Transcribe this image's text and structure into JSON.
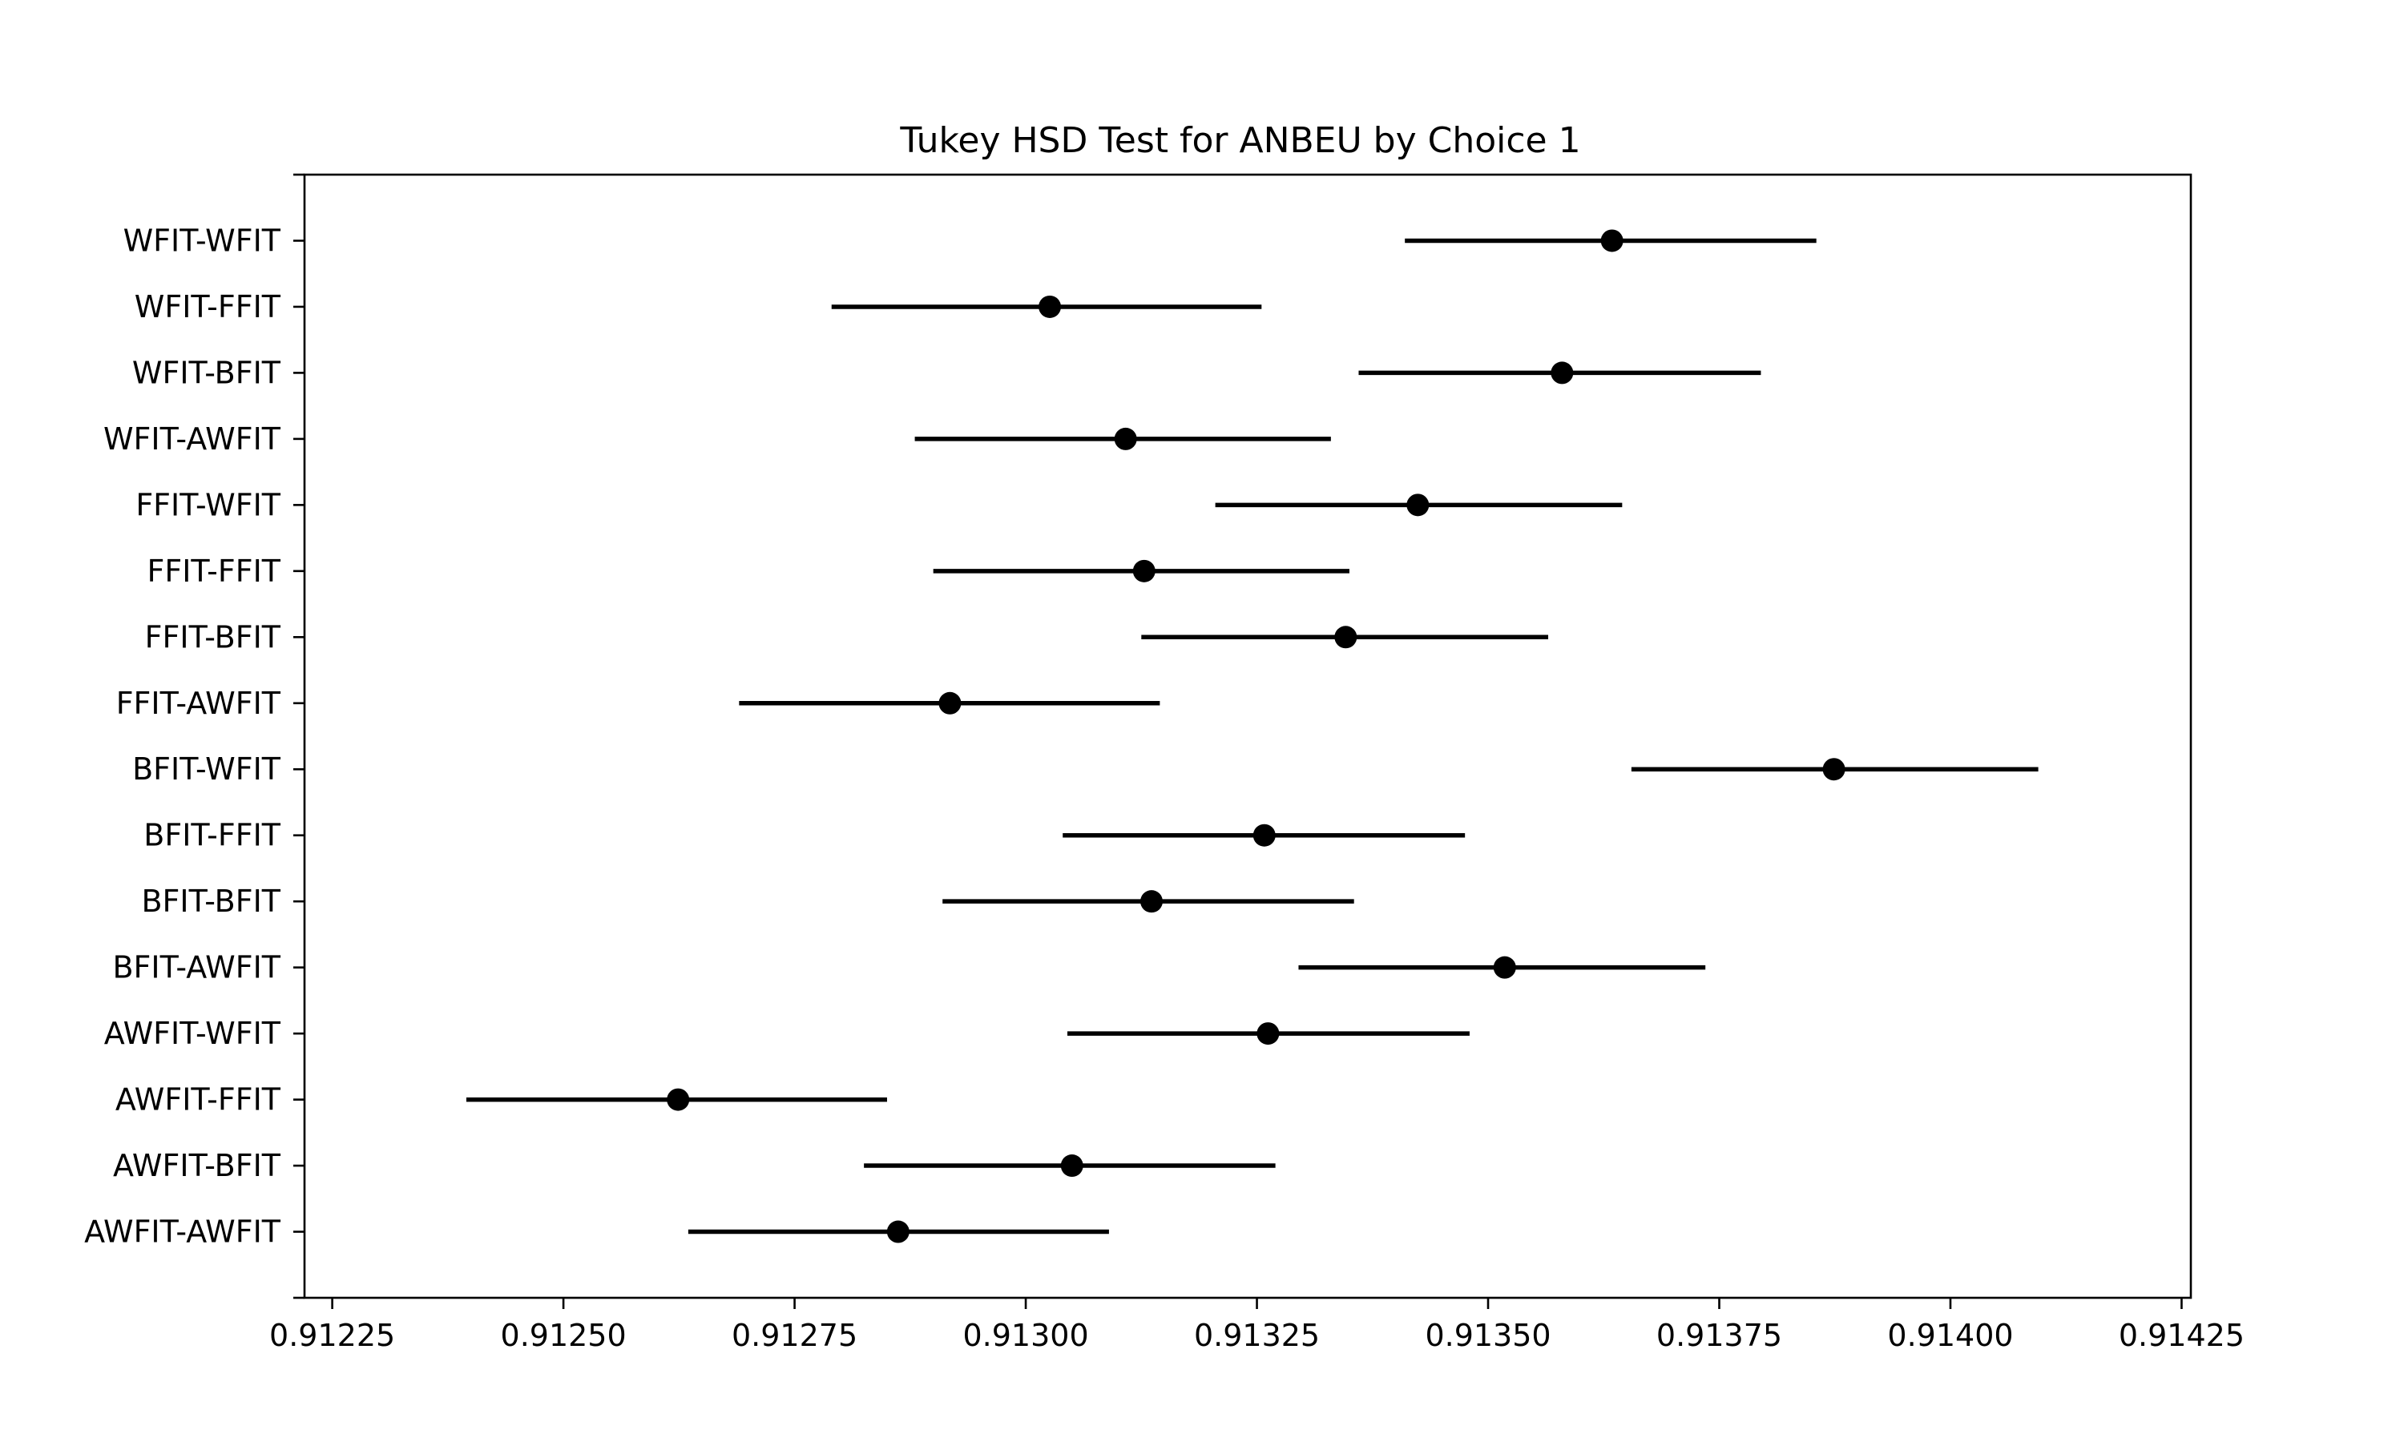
{
  "chart_data": {
    "type": "scatter",
    "subtype": "interval",
    "title": "Tukey HSD Test for ANBEU by Choice 1",
    "xlabel": "",
    "ylabel": "",
    "xlim": [
      0.91222,
      0.91426
    ],
    "xticks": [
      0.91225,
      0.9125,
      0.91275,
      0.913,
      0.91325,
      0.9135,
      0.91375,
      0.914,
      0.91425
    ],
    "xtick_labels": [
      "0.91225",
      "0.91250",
      "0.91275",
      "0.91300",
      "0.91325",
      "0.91350",
      "0.91375",
      "0.91400",
      "0.91425"
    ],
    "grid": false,
    "color": "#000000",
    "categories": [
      "WFIT-WFIT",
      "WFIT-FFIT",
      "WFIT-BFIT",
      "WFIT-AWFIT",
      "FFIT-WFIT",
      "FFIT-FFIT",
      "FFIT-BFIT",
      "FFIT-AWFIT",
      "BFIT-WFIT",
      "BFIT-FFIT",
      "BFIT-BFIT",
      "BFIT-AWFIT",
      "AWFIT-WFIT",
      "AWFIT-FFIT",
      "AWFIT-BFIT",
      "AWFIT-AWFIT"
    ],
    "means": [
      0.913634,
      0.913026,
      0.91358,
      0.913108,
      0.913424,
      0.913128,
      0.913346,
      0.912918,
      0.913874,
      0.913258,
      0.913136,
      0.913518,
      0.913262,
      0.912624,
      0.91305,
      0.912862
    ],
    "lower": [
      0.91341,
      0.91279,
      0.91336,
      0.91288,
      0.913205,
      0.9129,
      0.913125,
      0.91269,
      0.913655,
      0.91304,
      0.91291,
      0.913295,
      0.913045,
      0.912395,
      0.912825,
      0.912635
    ],
    "upper": [
      0.913855,
      0.913255,
      0.913795,
      0.91333,
      0.913645,
      0.91335,
      0.913565,
      0.913145,
      0.914095,
      0.913475,
      0.913355,
      0.913735,
      0.91348,
      0.91285,
      0.91327,
      0.91309
    ]
  }
}
